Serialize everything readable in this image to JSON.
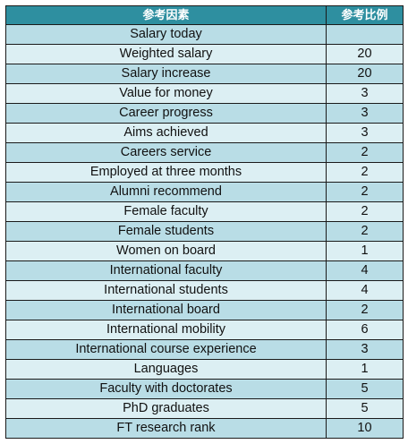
{
  "table": {
    "headers": [
      "参考因素",
      "参考比例"
    ],
    "rows": [
      {
        "factor": "Salary today",
        "weight": ""
      },
      {
        "factor": "Weighted salary",
        "weight": "20"
      },
      {
        "factor": "Salary increase",
        "weight": "20"
      },
      {
        "factor": "Value for money",
        "weight": "3"
      },
      {
        "factor": "Career progress",
        "weight": "3"
      },
      {
        "factor": "Aims achieved",
        "weight": "3"
      },
      {
        "factor": "Careers service",
        "weight": "2"
      },
      {
        "factor": "Employed at three months",
        "weight": "2"
      },
      {
        "factor": "Alumni recommend",
        "weight": "2"
      },
      {
        "factor": "Female faculty",
        "weight": "2"
      },
      {
        "factor": "Female students",
        "weight": "2"
      },
      {
        "factor": "Women on board",
        "weight": "1"
      },
      {
        "factor": "International faculty",
        "weight": "4"
      },
      {
        "factor": "International students",
        "weight": "4"
      },
      {
        "factor": "International board",
        "weight": "2"
      },
      {
        "factor": "International mobility",
        "weight": "6"
      },
      {
        "factor": "International course experience",
        "weight": "3"
      },
      {
        "factor": "Languages",
        "weight": "1"
      },
      {
        "factor": "Faculty with doctorates",
        "weight": "5"
      },
      {
        "factor": "PhD graduates",
        "weight": "5"
      },
      {
        "factor": "FT research rank",
        "weight": "10"
      }
    ]
  }
}
